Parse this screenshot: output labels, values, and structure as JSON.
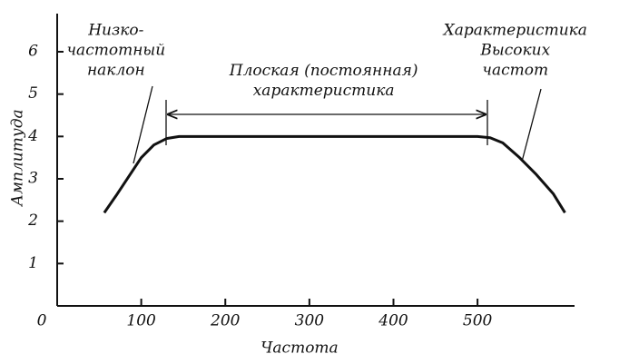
{
  "chart_data": {
    "type": "line",
    "x_label": "Частота",
    "y_label": "Амплитуда",
    "x": [
      56,
      70,
      85,
      100,
      115,
      130,
      145,
      500,
      515,
      530,
      550,
      570,
      590,
      604
    ],
    "series": [
      {
        "color": "#111111",
        "values": [
          2.2,
          2.6,
          3.05,
          3.5,
          3.8,
          3.95,
          4,
          4,
          3.97,
          3.85,
          3.5,
          3.1,
          2.65,
          2.2
        ]
      }
    ],
    "xlim": [
      0,
      610
    ],
    "ylim": [
      0,
      6.9
    ],
    "xticks": [
      0,
      100,
      200,
      300,
      400,
      500
    ],
    "yticks": [
      1,
      2,
      3,
      4,
      5,
      6
    ],
    "grid": false,
    "annotations": [
      {
        "lines": [
          "Низко-",
          "частотный",
          "наклон"
        ],
        "x": 70,
        "y": 6.5
      },
      {
        "lines": [
          "Плоская (постоянная)",
          "характеристика"
        ],
        "x": 317,
        "y": 5.55
      },
      {
        "lines": [
          "Характеристика",
          "Высоких",
          "частот"
        ],
        "x": 545,
        "y": 6.5
      }
    ]
  }
}
